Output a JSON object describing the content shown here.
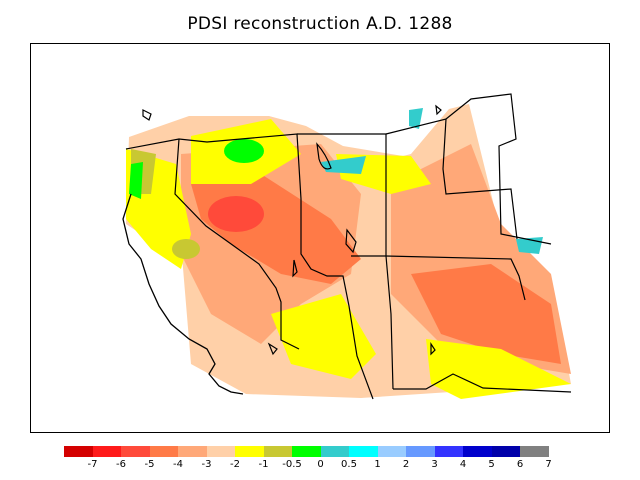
{
  "title": "PDSI reconstruction A.D. 1288",
  "legend": {
    "colors": [
      "#d40000",
      "#ff1a1a",
      "#ff4a3a",
      "#ff7a47",
      "#ffa878",
      "#ffd0a8",
      "#ffff00",
      "#c8c832",
      "#00ff00",
      "#33cccc",
      "#00ffff",
      "#99ccff",
      "#6699ff",
      "#3333ff",
      "#0000cc",
      "#0000aa",
      "#808080"
    ],
    "labels": [
      "-7",
      "-6",
      "-5",
      "-4",
      "-3",
      "-2",
      "-1",
      "-0.5",
      "0",
      "0.5",
      "1",
      "2",
      "3",
      "4",
      "5",
      "6",
      "7"
    ]
  },
  "map": {
    "region": "Southwestern United States",
    "colors": {
      "extreme": "#ff4a3a",
      "severe": "#ff7a47",
      "moderate": "#ffa878",
      "mild": "#ffd0a8",
      "slight": "#ffff00",
      "near_normal": "#c8c832",
      "normal": "#00ff00",
      "wet_slight": "#33cccc",
      "wet": "#00ffff"
    }
  }
}
